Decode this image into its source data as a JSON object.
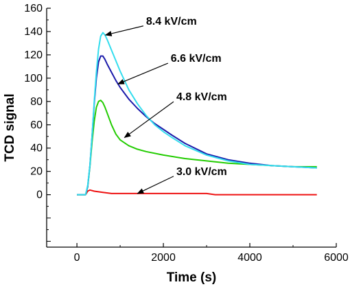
{
  "chart_data": {
    "type": "line",
    "title": "",
    "xlabel": "Time (s)",
    "ylabel": "TCD signal",
    "xlim": [
      -700,
      6000
    ],
    "ylim": [
      -45,
      160
    ],
    "xticks": [
      0,
      2000,
      4000,
      6000
    ],
    "yticks": [
      0,
      20,
      40,
      60,
      80,
      100,
      120,
      140,
      160
    ],
    "grid": false,
    "legend": "none",
    "series": [
      {
        "color": "#33ddee",
        "x": [
          0,
          200,
          250,
          300,
          350,
          400,
          450,
          500,
          550,
          600,
          650,
          700,
          800,
          900,
          1000,
          1200,
          1400,
          1600,
          1800,
          2000,
          2200,
          2500,
          3000,
          3500,
          4000,
          4500,
          5000,
          5550
        ],
        "y": [
          0,
          0,
          8,
          25,
          50,
          80,
          105,
          125,
          136,
          139,
          137,
          133,
          124,
          115,
          106,
          90,
          78,
          68,
          60,
          54,
          49,
          42,
          34,
          29,
          26,
          25,
          24,
          23
        ]
      },
      {
        "color": "#1a1aaa",
        "x": [
          0,
          200,
          250,
          300,
          350,
          400,
          450,
          500,
          550,
          600,
          650,
          700,
          800,
          900,
          1000,
          1200,
          1400,
          1600,
          1800,
          2000,
          2200,
          2500,
          3000,
          3500,
          4000,
          4500,
          5000,
          5550
        ],
        "y": [
          0,
          0,
          7,
          25,
          50,
          78,
          100,
          114,
          119,
          119,
          116,
          112,
          105,
          98,
          92,
          82,
          74,
          67,
          61,
          56,
          51,
          44,
          35,
          30,
          27,
          25,
          24,
          23
        ]
      },
      {
        "color": "#22cc00",
        "x": [
          0,
          200,
          250,
          300,
          350,
          400,
          450,
          500,
          550,
          600,
          650,
          700,
          800,
          900,
          1000,
          1200,
          1400,
          1600,
          2000,
          2500,
          3000,
          3500,
          4000,
          4500,
          5000,
          5550
        ],
        "y": [
          0,
          0,
          7,
          24,
          45,
          63,
          75,
          80,
          81,
          79,
          75,
          70,
          60,
          52,
          47,
          42,
          39,
          37,
          34,
          31,
          29,
          27,
          26,
          25,
          24,
          24
        ]
      },
      {
        "color": "#ee1111",
        "x": [
          0,
          200,
          250,
          300,
          400,
          600,
          800,
          1000,
          1400,
          2000,
          3000,
          3200,
          4000,
          5550
        ],
        "y": [
          0,
          0,
          3,
          4,
          3,
          2,
          1,
          1,
          1,
          1,
          1,
          0,
          0,
          0
        ]
      }
    ],
    "annotations": [
      {
        "text": "8.4 kV/cm",
        "arrow_to": [
          660,
          137
        ],
        "text_at": [
          1600,
          146
        ]
      },
      {
        "text": "6.6 kV/cm",
        "arrow_to": [
          950,
          95
        ],
        "text_at": [
          2170,
          114
        ]
      },
      {
        "text": "4.8 kV/cm",
        "arrow_to": [
          1100,
          49
        ],
        "text_at": [
          2300,
          81
        ]
      },
      {
        "text": "3.0 kV/cm",
        "arrow_to": [
          1400,
          1
        ],
        "text_at": [
          2300,
          17
        ]
      }
    ]
  }
}
